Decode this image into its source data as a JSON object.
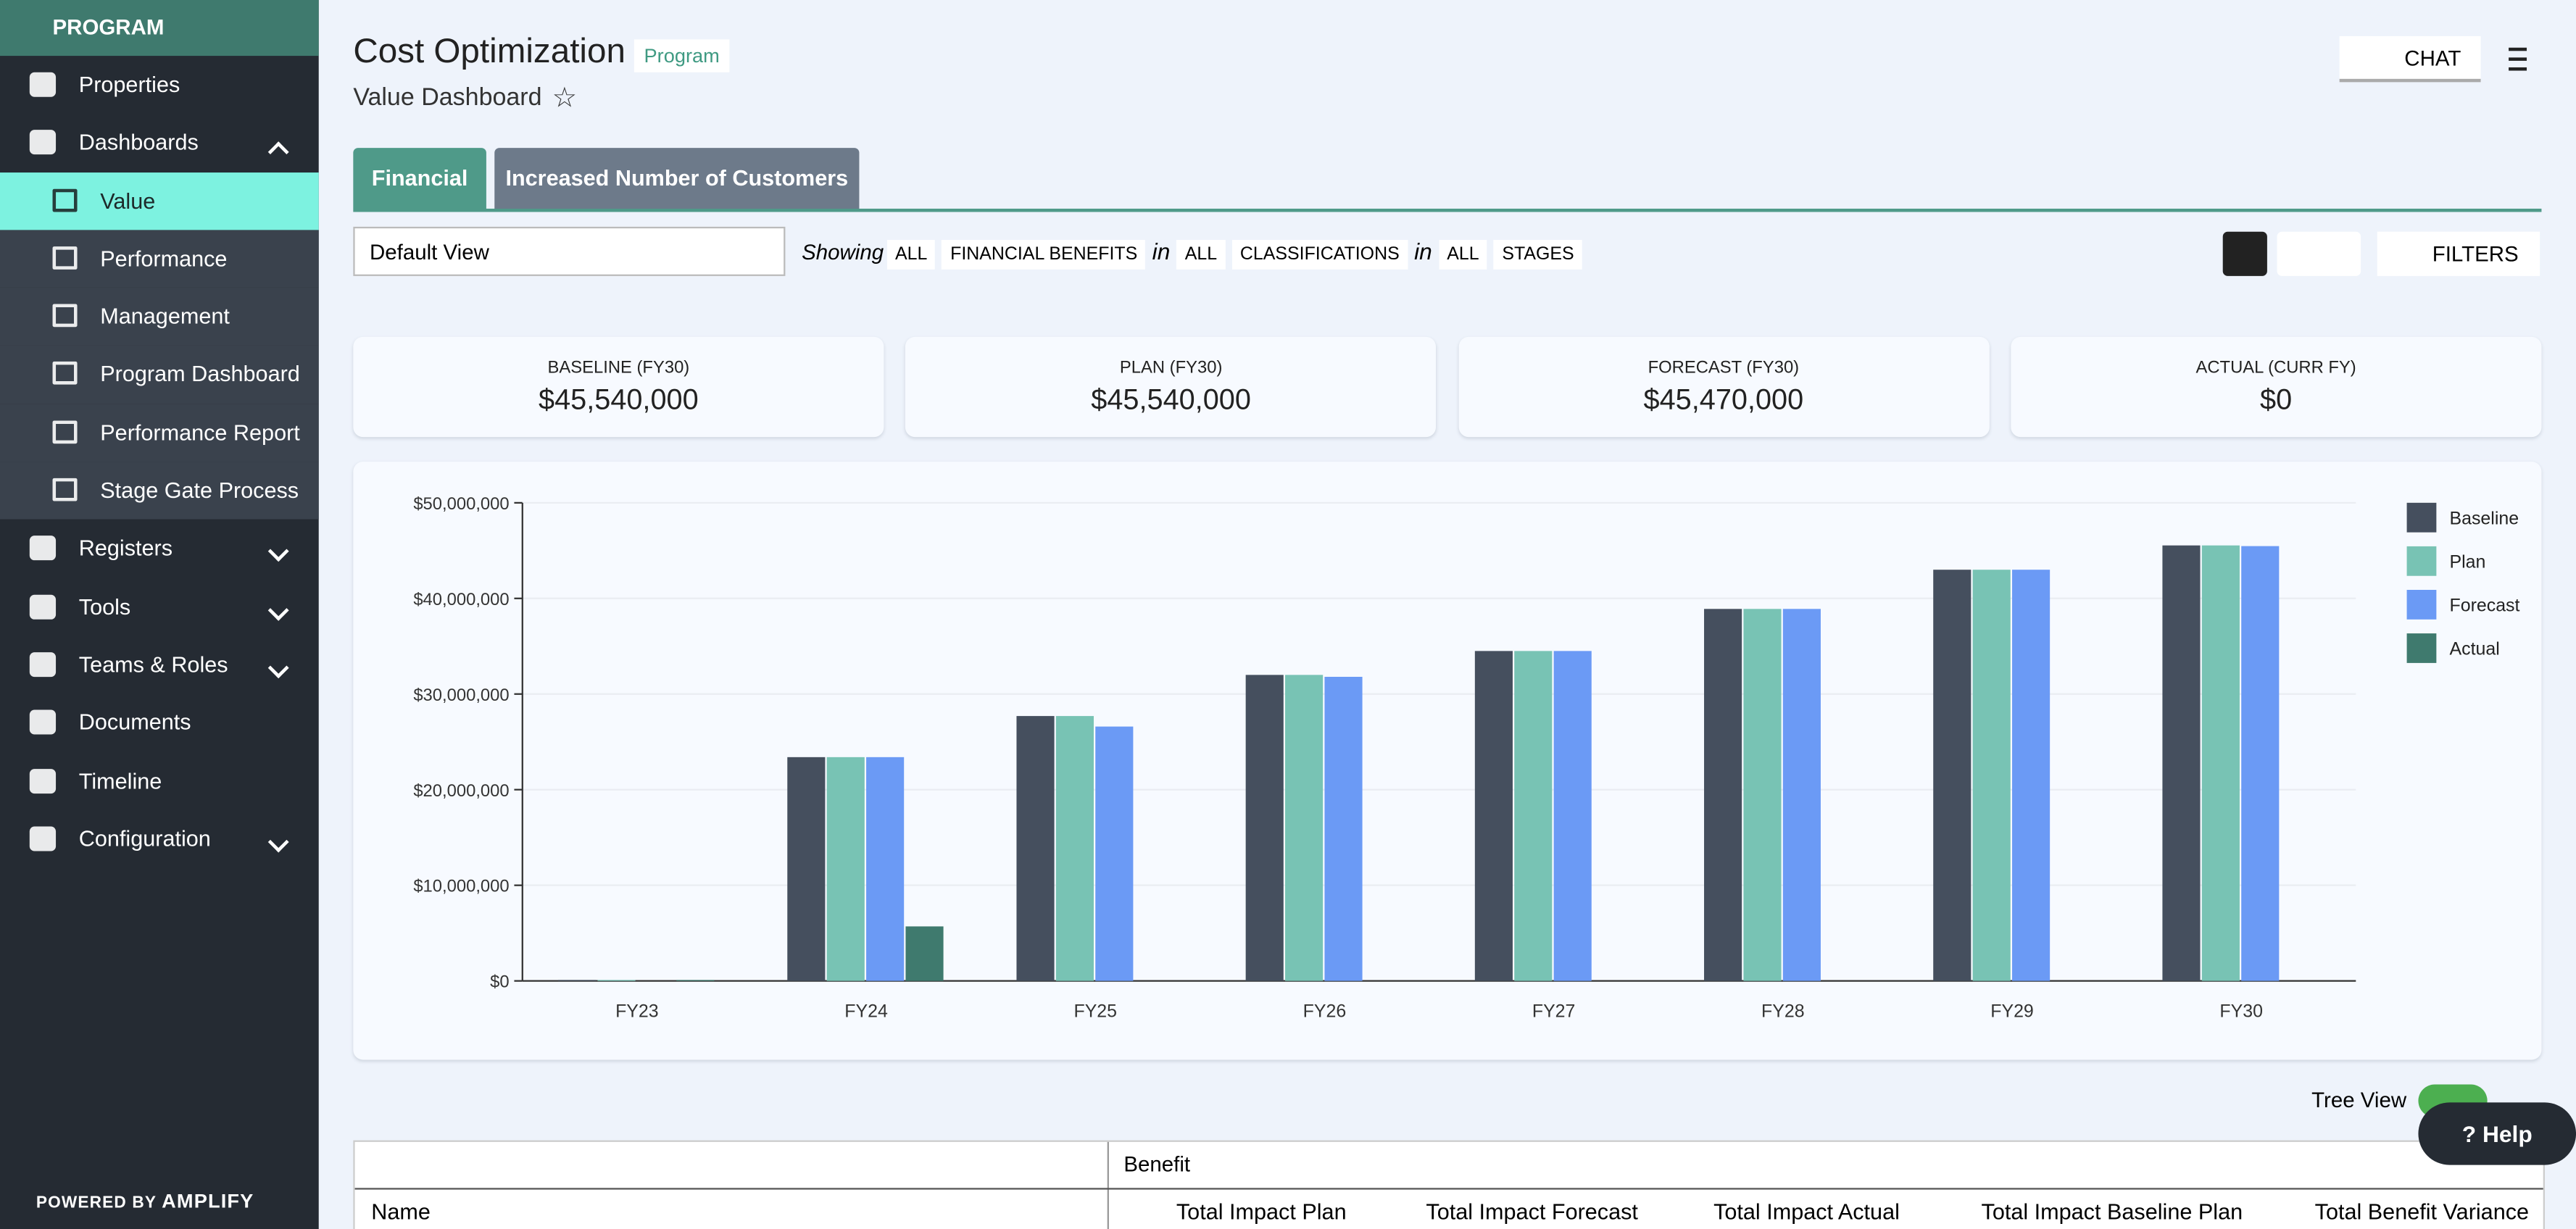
{
  "sidebar": {
    "header": "PROGRAM",
    "items": [
      "Properties",
      "Dashboards",
      "Value",
      "Performance",
      "Management",
      "Program Dashboard",
      "Performance Report",
      "Stage Gate Process",
      "Registers",
      "Tools",
      "Teams & Roles",
      "Documents",
      "Timeline",
      "Configuration"
    ],
    "footer": {
      "powered": "POWERED BY",
      "brand": "AMPLIFY"
    }
  },
  "header": {
    "title": "Cost Optimization",
    "badge": "Program",
    "subtitle": "Value Dashboard",
    "chat": "CHAT"
  },
  "tabs": [
    "Financial",
    "Increased Number of Customers"
  ],
  "filters": {
    "view": "Default View",
    "showing": "Showing",
    "chips": [
      "ALL",
      "FINANCIAL BENEFITS",
      "in",
      "ALL",
      "CLASSIFICATIONS",
      "in",
      "ALL",
      "STAGES"
    ],
    "button": "FILTERS"
  },
  "kpis": [
    {
      "label": "BASELINE (FY30)",
      "value": "$45,540,000"
    },
    {
      "label": "PLAN (FY30)",
      "value": "$45,540,000"
    },
    {
      "label": "FORECAST (FY30)",
      "value": "$45,470,000"
    },
    {
      "label": "ACTUAL (CURR FY)",
      "value": "$0"
    }
  ],
  "chart_data": {
    "type": "bar",
    "categories": [
      "FY23",
      "FY24",
      "FY25",
      "FY26",
      "FY27",
      "FY28",
      "FY29",
      "FY30"
    ],
    "series": [
      {
        "name": "Baseline",
        "color": "#454f5e",
        "values": [
          100000,
          23400000,
          27700000,
          32000000,
          34500000,
          38900000,
          43000000,
          45540000
        ]
      },
      {
        "name": "Plan",
        "color": "#78c3b4",
        "values": [
          100000,
          23400000,
          27700000,
          32000000,
          34500000,
          38900000,
          43000000,
          45540000
        ]
      },
      {
        "name": "Forecast",
        "color": "#6b9af5",
        "values": [
          0,
          23400000,
          26600000,
          31800000,
          34500000,
          38900000,
          43000000,
          45470000
        ]
      },
      {
        "name": "Actual",
        "color": "#3f7a6e",
        "values": [
          100000,
          5700000,
          0,
          0,
          0,
          0,
          0,
          0
        ]
      }
    ],
    "ylim": [
      0,
      50000000
    ],
    "yticks": [
      {
        "value": 0,
        "label": "$0"
      },
      {
        "value": 10000000,
        "label": "$10,000,000"
      },
      {
        "value": 20000000,
        "label": "$20,000,000"
      },
      {
        "value": 30000000,
        "label": "$30,000,000"
      },
      {
        "value": 40000000,
        "label": "$40,000,000"
      },
      {
        "value": 50000000,
        "label": "$50,000,000"
      }
    ],
    "grid": true,
    "legend": "right"
  },
  "table": {
    "tree_view": "Tree View",
    "group": "Benefit",
    "columns": [
      "Name",
      "Total Impact Plan",
      "Total Impact Forecast",
      "Total Impact Actual",
      "Total Impact Baseline Plan",
      "Total Benefit Variance"
    ]
  },
  "help": "Help"
}
